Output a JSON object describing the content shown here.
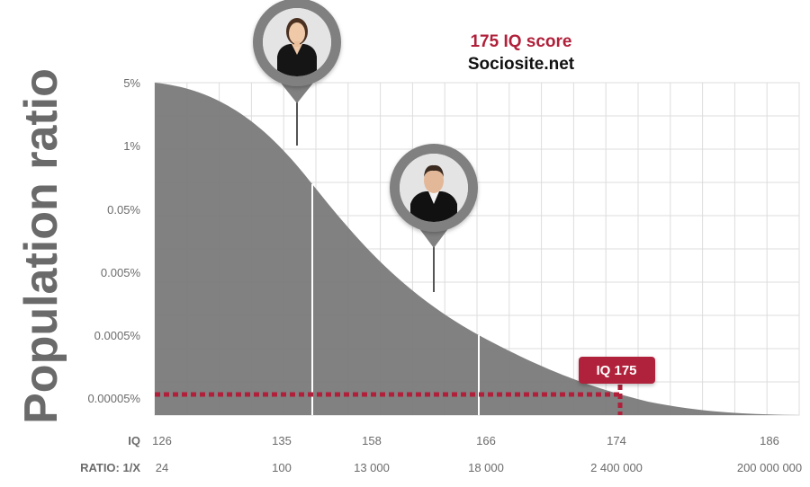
{
  "header": {
    "title": "175 IQ score",
    "site": "Sociosite.net"
  },
  "colors": {
    "accent": "#b0203a",
    "area": "#7a7a7a",
    "grid": "#dddddd",
    "marker": "#808080"
  },
  "chart_data": {
    "type": "area",
    "title": "175 IQ score",
    "subtitle": "Sociosite.net",
    "ylabel": "Population ratio",
    "x_row_label": "IQ",
    "ratio_row_label": "RATIO: 1/X",
    "x_ticks": [
      "126",
      "135",
      "158",
      "166",
      "174",
      "186"
    ],
    "ratio_ticks": [
      "24",
      "100",
      "13 000",
      "18 000",
      "2 400 000",
      "200 000 000"
    ],
    "y_ticks": [
      "5%",
      "1%",
      "0.05%",
      "0.005%",
      "0.0005%",
      "0.00005%"
    ],
    "y_scale": "log",
    "grid": true,
    "markers": [
      {
        "name": "person-marker-1",
        "icon": "woman-portrait-icon"
      },
      {
        "name": "person-marker-2",
        "icon": "man-portrait-icon"
      }
    ],
    "highlight": {
      "label": "IQ 175"
    }
  }
}
